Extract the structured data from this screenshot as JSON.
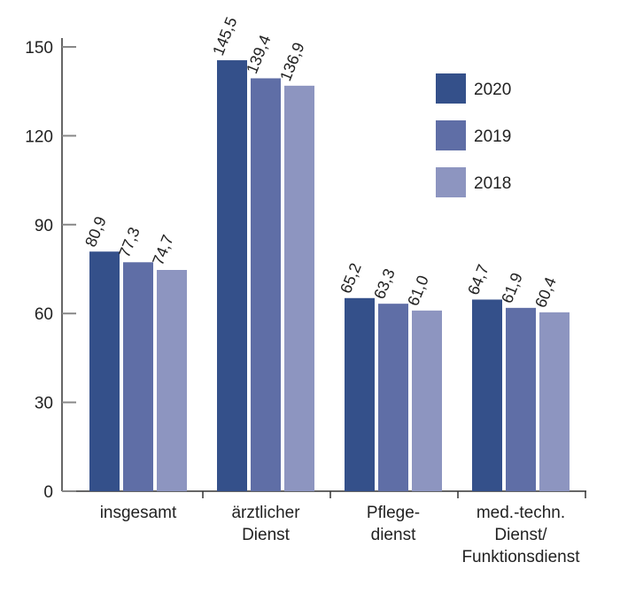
{
  "chart_data": {
    "type": "bar",
    "categories": [
      [
        "insgesamt"
      ],
      [
        "ärztlicher",
        "Dienst"
      ],
      [
        "Pflege-",
        "dienst"
      ],
      [
        "med.-techn.",
        "Dienst/",
        "Funktionsdienst"
      ]
    ],
    "series": [
      {
        "name": "2020",
        "color": "#34508a",
        "values": [
          80.9,
          145.5,
          65.2,
          64.7
        ],
        "labels": [
          "80,9",
          "145,5",
          "65,2",
          "64,7"
        ]
      },
      {
        "name": "2019",
        "color": "#5f6ea6",
        "values": [
          77.3,
          139.4,
          63.3,
          61.9
        ],
        "labels": [
          "77,3",
          "139,4",
          "63,3",
          "61,9"
        ]
      },
      {
        "name": "2018",
        "color": "#8d95c0",
        "values": [
          74.7,
          136.9,
          61.0,
          60.4
        ],
        "labels": [
          "74,7",
          "136,9",
          "61,0",
          "60,4"
        ]
      }
    ],
    "yticks": [
      0,
      30,
      60,
      90,
      120,
      150
    ],
    "ylim": [
      0,
      150
    ],
    "grid": false,
    "legend": "top-right",
    "title": "",
    "xlabel": "",
    "ylabel": ""
  }
}
